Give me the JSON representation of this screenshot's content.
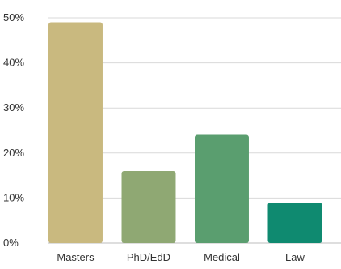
{
  "chart_data": {
    "type": "bar",
    "title": "",
    "xlabel": "",
    "ylabel": "",
    "categories": [
      "Masters",
      "PhD/EdD",
      "Medical",
      "Law"
    ],
    "values": [
      49,
      16,
      24,
      9
    ],
    "value_unit": "%",
    "ylim": [
      0,
      50
    ],
    "yticks": [
      0,
      10,
      20,
      30,
      40,
      50
    ],
    "ytick_labels": [
      "0%",
      "10%",
      "20%",
      "30%",
      "40%",
      "50%"
    ],
    "grid": true,
    "legend": "none",
    "bar_colors": [
      "#c9b97f",
      "#8fa873",
      "#5a9e6f",
      "#0f8a70"
    ]
  }
}
